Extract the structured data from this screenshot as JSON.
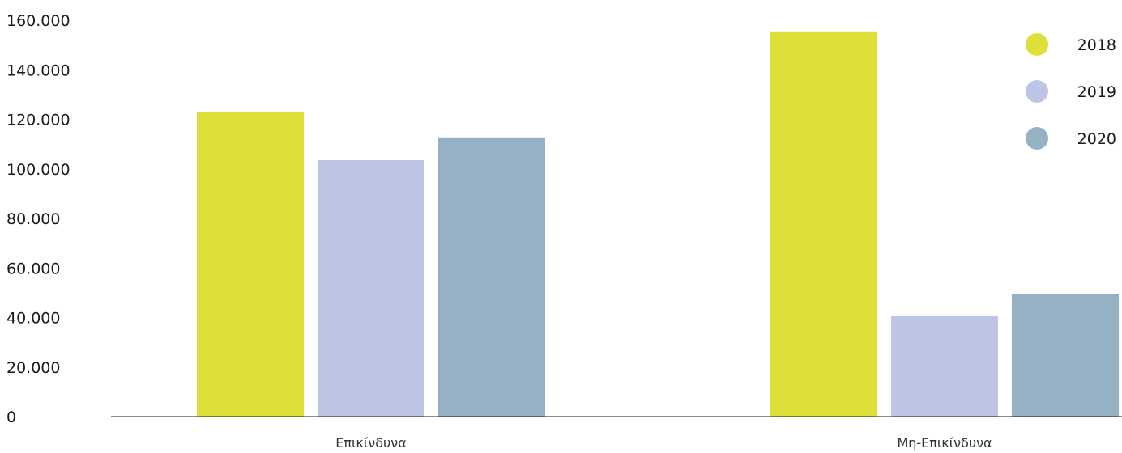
{
  "chart_data": {
    "type": "bar",
    "categories": [
      "Επικίνδυνα",
      "Μη-Επικίνδυνα"
    ],
    "series": [
      {
        "name": "2018",
        "color": "#dfdf3a",
        "values": [
          123000,
          155500
        ]
      },
      {
        "name": "2019",
        "color": "#bcc5e5",
        "values": [
          103500,
          40500
        ]
      },
      {
        "name": "2020",
        "color": "#96b1c3",
        "values": [
          112700,
          49500
        ]
      }
    ],
    "yticks": [
      "0",
      "20.000",
      "40.000",
      "60.000",
      "80.000",
      "100.000",
      "120.000",
      "140.000",
      "160.000"
    ],
    "ylim": [
      0,
      160000
    ],
    "grid": false,
    "legend_position": "top-right"
  }
}
